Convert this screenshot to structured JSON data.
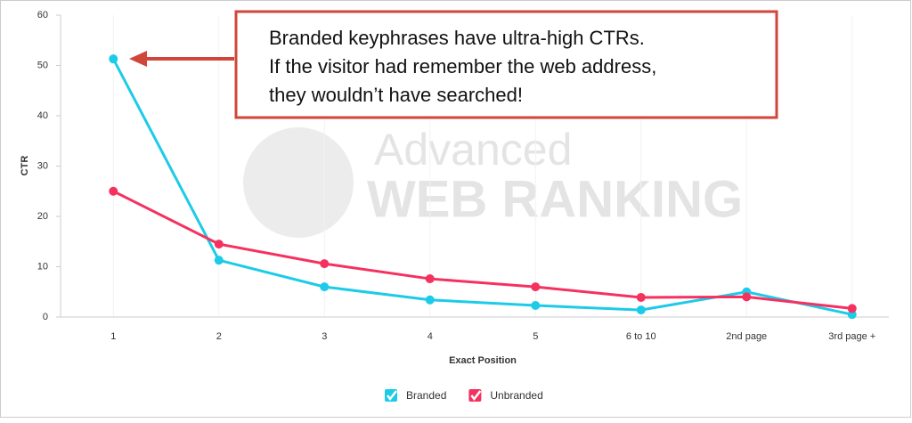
{
  "chart_data": {
    "type": "line",
    "x_label": "Exact Position",
    "y_label": "CTR",
    "categories": [
      "1",
      "2",
      "3",
      "4",
      "5",
      "6 to 10",
      "2nd page",
      "3rd page +"
    ],
    "series": [
      {
        "name": "Branded",
        "color": "#1ccbe8",
        "values": [
          51.3,
          11.3,
          6.0,
          3.4,
          2.3,
          1.4,
          5.0,
          0.5
        ]
      },
      {
        "name": "Unbranded",
        "color": "#f5315f",
        "values": [
          25.0,
          14.5,
          10.6,
          7.6,
          6.0,
          3.9,
          4.0,
          1.7
        ]
      }
    ],
    "ylim": [
      0,
      60
    ],
    "yticks": [
      0,
      10,
      20,
      30,
      40,
      50,
      60
    ],
    "annotation": [
      "Branded keyphrases have ultra-high CTRs.",
      "If the visitor had remember the web address,",
      "they wouldn’t have searched!"
    ],
    "watermark": [
      "Advanced",
      "WEB RANKING"
    ]
  }
}
